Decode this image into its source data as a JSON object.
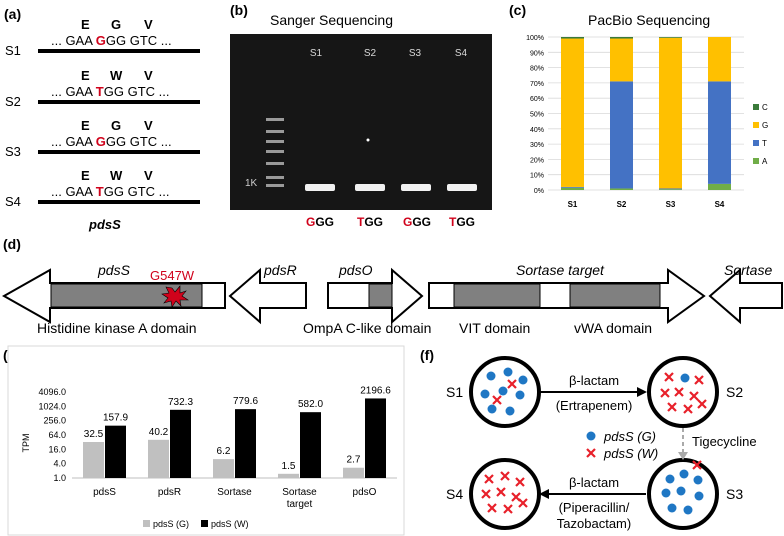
{
  "panel_a": {
    "label": "(a)",
    "codon_cols": [
      "...",
      "GAA",
      "GGG",
      "GTC",
      "..."
    ],
    "rows": [
      {
        "name": "S1",
        "aa1": "E",
        "aa2": "G",
        "aa3": "V",
        "pre": "... GAA ",
        "mut": "G",
        "post": "GG GTC ..."
      },
      {
        "name": "S2",
        "aa1": "E",
        "aa2": "W",
        "aa3": "V",
        "pre": "... GAA ",
        "mut": "T",
        "post": "GG GTC ..."
      },
      {
        "name": "S3",
        "aa1": "E",
        "aa2": "G",
        "aa3": "V",
        "pre": "... GAA ",
        "mut": "G",
        "post": "GG GTC ..."
      },
      {
        "name": "S4",
        "aa1": "E",
        "aa2": "W",
        "aa3": "V",
        "pre": "... GAA ",
        "mut": "T",
        "post": "GG GTC ..."
      }
    ],
    "gene": "pdsS"
  },
  "panel_b": {
    "label": "(b)",
    "title": "Sanger Sequencing",
    "lanes": [
      "S1",
      "S2",
      "S3",
      "S4"
    ],
    "ladder_mark": "1K",
    "results": [
      {
        "mut": "G",
        "rest": "GG"
      },
      {
        "mut": "T",
        "rest": "GG"
      },
      {
        "mut": "G",
        "rest": "GG"
      },
      {
        "mut": "T",
        "rest": "GG"
      }
    ]
  },
  "panel_c": {
    "label": "(c)",
    "chart_data": {
      "type": "bar",
      "stacked": true,
      "title": "PacBio Sequencing",
      "categories": [
        "S1",
        "S2",
        "S3",
        "S4"
      ],
      "yticks": [
        "0%",
        "10%",
        "20%",
        "30%",
        "40%",
        "50%",
        "60%",
        "70%",
        "80%",
        "90%",
        "100%"
      ],
      "ylim": [
        0,
        100
      ],
      "series": [
        {
          "name": "A",
          "color": "#70ad47",
          "values": [
            1.5,
            1,
            0.5,
            4
          ]
        },
        {
          "name": "T",
          "color": "#4472c4",
          "values": [
            0.5,
            70,
            0.5,
            67
          ]
        },
        {
          "name": "G",
          "color": "#ffc000",
          "values": [
            97,
            28,
            98.5,
            29
          ]
        },
        {
          "name": "C",
          "color": "#3a7a3a",
          "values": [
            1,
            1,
            0.5,
            0
          ]
        }
      ],
      "legend": [
        "C",
        "G",
        "T",
        "A"
      ],
      "legend_position": "right"
    }
  },
  "panel_d": {
    "label": "(d)",
    "genes": [
      {
        "name": "pdsS",
        "domain": "Histidine kinase A domain",
        "mutation": "G547W"
      },
      {
        "name": "pdsR"
      },
      {
        "name": "pdsO",
        "domain": "OmpA C-like domain"
      },
      {
        "name": "Sortase target",
        "domain1": "VIT domain",
        "domain2": "vWA domain"
      },
      {
        "name": "Sortase"
      }
    ]
  },
  "panel_e": {
    "label": "(e)",
    "chart_data": {
      "type": "bar",
      "yscale": "log2",
      "ylabel": "TPM",
      "yticks": [
        "1.0",
        "4.0",
        "16.0",
        "64.0",
        "256.0",
        "1024.0",
        "4096.0"
      ],
      "ylim": [
        1,
        4096
      ],
      "categories": [
        "pdsS",
        "pdsR",
        "Sortase",
        "Sortase target",
        "pdsO"
      ],
      "series": [
        {
          "name": "pdsS (G)",
          "color": "#c0c0c0",
          "values": [
            32.5,
            40.2,
            6.2,
            1.5,
            2.7
          ],
          "labels": [
            "32.5",
            "40.2",
            "6.2",
            "1.5",
            "2.7"
          ]
        },
        {
          "name": "pdsS (W)",
          "color": "#000000",
          "values": [
            157.9,
            732.3,
            779.6,
            582.0,
            2196.6
          ],
          "labels": [
            "157.9",
            "732.3",
            "779.6",
            "582.0",
            "2196.6"
          ]
        }
      ]
    }
  },
  "panel_f": {
    "label": "(f)",
    "s1": "S1",
    "s2": "S2",
    "s3": "S3",
    "s4": "S4",
    "arrow1_top": "β-lactam",
    "arrow1_bottom": "(Ertrapenem)",
    "tige": "Tigecycline",
    "arrow2_top": "β-lactam",
    "arrow2_bottom1": "(Piperacillin/",
    "arrow2_bottom2": "Tazobactam)",
    "legend_g": "pdsS (G)",
    "legend_w": "pdsS (W)",
    "dot_color": "#1f77c4",
    "cross_color": "#e8202a"
  }
}
